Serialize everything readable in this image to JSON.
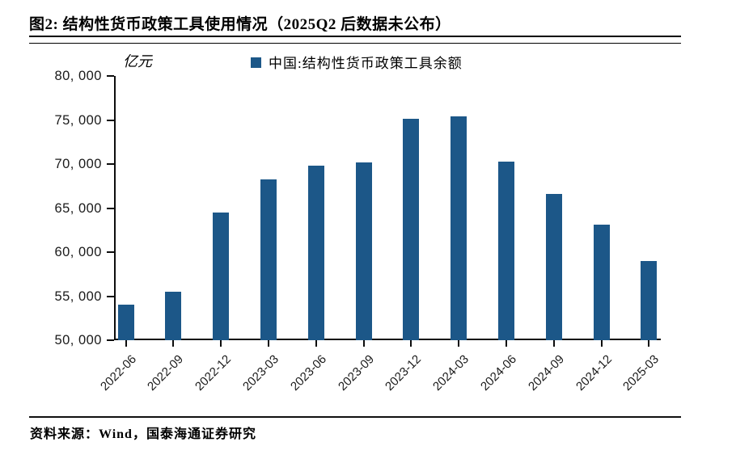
{
  "header": {
    "title": "图2:  结构性货币政策工具使用情况（2025Q2 后数据未公布）"
  },
  "chart_data": {
    "type": "bar",
    "title": "结构性货币政策工具使用情况（2025Q2 后数据未公布）",
    "unit_label": "亿元",
    "legend": "中国:结构性货币政策工具余额",
    "categories": [
      "2022-06",
      "2022-09",
      "2022-12",
      "2023-03",
      "2023-06",
      "2023-09",
      "2023-12",
      "2024-03",
      "2024-06",
      "2024-09",
      "2024-12",
      "2025-03"
    ],
    "values": [
      54000,
      55500,
      64500,
      68300,
      69800,
      70200,
      75100,
      75400,
      70300,
      66600,
      63100,
      59000
    ],
    "xlabel": "",
    "ylabel": "亿元",
    "ylim": [
      50000,
      80000
    ],
    "ytick_step": 5000,
    "ytick_labels": [
      "50, 000",
      "55, 000",
      "60, 000",
      "65, 000",
      "70, 000",
      "75, 000",
      "80, 000"
    ],
    "grid": false,
    "legend_position": "top-center",
    "bar_color": "#1C5788",
    "axis_color": "#0d0d0d"
  },
  "footer": {
    "source": "资料来源：Wind，国泰海通证券研究"
  }
}
